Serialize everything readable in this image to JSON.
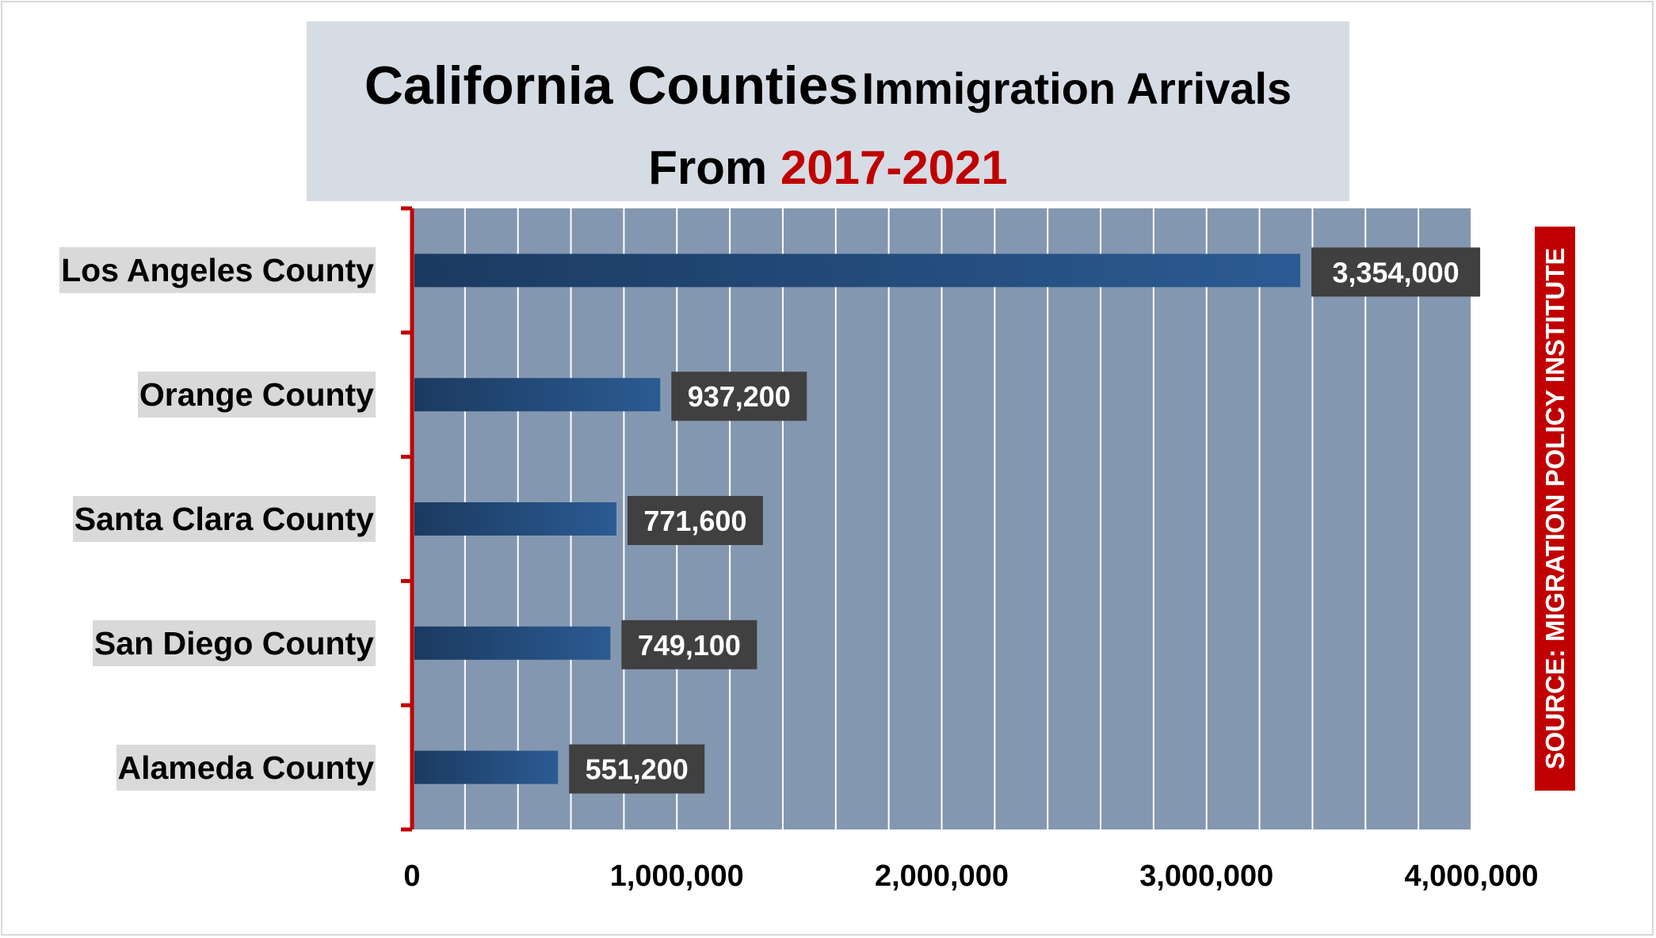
{
  "title": {
    "part1": "California Counties",
    "part2": "Immigration Arrivals",
    "line2_prefix": "From",
    "line2_years": "2017-2021"
  },
  "source": "SOURCE: MIGRATION POLICY INSTITUTE",
  "colors": {
    "plot_bg": "#8497b0",
    "bar": "#1f4e79",
    "label_bg": "#404040",
    "axis_red": "#c00000",
    "title_bg": "#d6dce4"
  },
  "chart_data": {
    "type": "bar",
    "orientation": "horizontal",
    "categories": [
      "Los Angeles County",
      "Orange County",
      "Santa Clara County",
      "San Diego County",
      "Alameda County"
    ],
    "values": [
      3354000,
      937200,
      771600,
      749100,
      551200
    ],
    "value_labels": [
      "3,354,000",
      "937,200",
      "771,600",
      "749,100",
      "551,200"
    ],
    "xlim": [
      0,
      4000000
    ],
    "x_ticks": [
      0,
      1000000,
      2000000,
      3000000,
      4000000
    ],
    "x_tick_labels": [
      "0",
      "1,000,000",
      "2,000,000",
      "3,000,000",
      "4,000,000"
    ],
    "grid": true
  }
}
